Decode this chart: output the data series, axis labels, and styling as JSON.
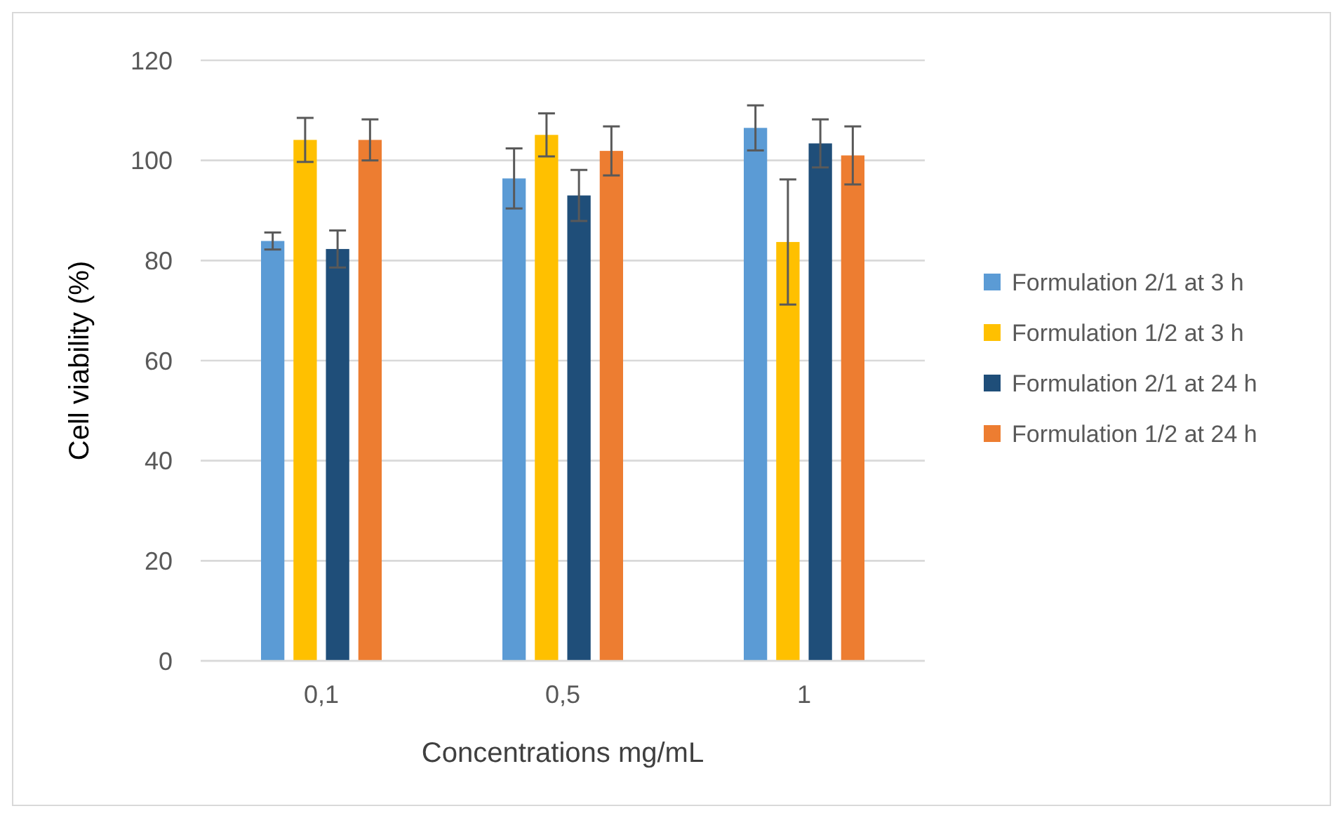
{
  "chart_data": {
    "type": "bar",
    "xlabel": "Concentrations mg/mL",
    "ylabel": "Cell viability (%)",
    "categories": [
      "0,1",
      "0,5",
      "1"
    ],
    "series": [
      {
        "name": "Formulation 2/1 at 3 h",
        "color": "#5b9bd5",
        "values": [
          83.9,
          96.4,
          106.5
        ],
        "errors": [
          1.7,
          6.0,
          4.5
        ]
      },
      {
        "name": "Formulation 1/2 at 3 h",
        "color": "#ffc000",
        "values": [
          104.1,
          105.1,
          83.7
        ],
        "errors": [
          4.4,
          4.3,
          12.5
        ]
      },
      {
        "name": "Formulation 2/1 at 24 h",
        "color": "#1f4e79",
        "values": [
          82.3,
          93.0,
          103.4
        ],
        "errors": [
          3.7,
          5.1,
          4.8
        ]
      },
      {
        "name": "Formulation 1/2 at 24 h",
        "color": "#ed7d31",
        "values": [
          104.1,
          101.9,
          101.0
        ],
        "errors": [
          4.1,
          4.9,
          5.8
        ]
      }
    ],
    "ylim": [
      0,
      120
    ],
    "yticks": [
      0,
      20,
      40,
      60,
      80,
      100,
      120
    ],
    "grid": "y",
    "legend": "right"
  }
}
